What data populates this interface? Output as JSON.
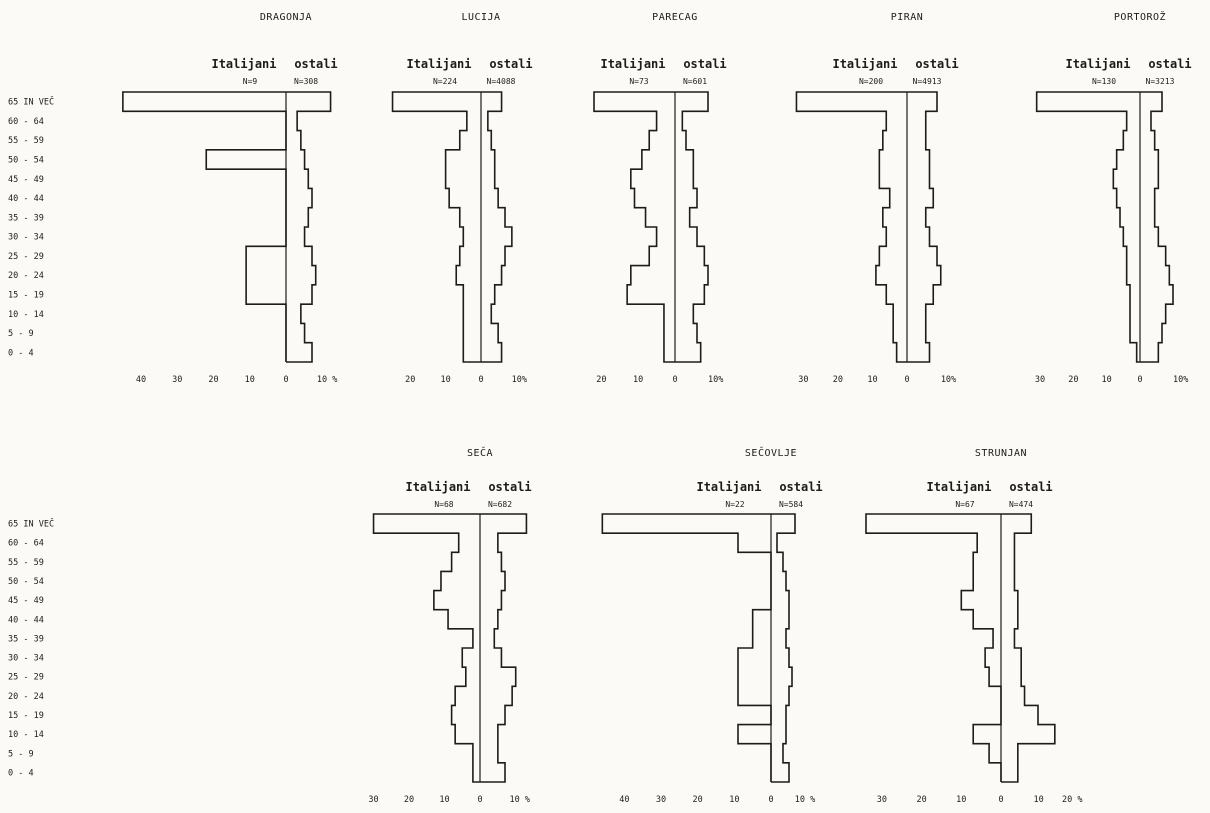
{
  "age_groups": [
    "65 IN VEČ",
    "60 - 64",
    "55 - 59",
    "50 - 54",
    "45 - 49",
    "40 - 44",
    "35 - 39",
    "30 - 34",
    "25 - 29",
    "20 - 24",
    "15 - 19",
    "10 - 14",
    "5 - 9",
    "0 - 4"
  ],
  "age_groups_row2": [
    "65 IN VEČ",
    "60 - 64",
    "55 - 59",
    "50 - 54",
    "45 - 49",
    "40 - 44",
    "35 - 39",
    "30 - 34",
    "25 - 29",
    "20 - 24",
    "15 - 19",
    "10 - 14",
    "5 - 9",
    "0 - 4"
  ],
  "chart_data": [
    {
      "type": "bar",
      "title": "DRAGONJA",
      "left_label": "Italijani",
      "right_label": "ostali",
      "left_n": "N=9",
      "right_n": "N=308",
      "left_ticks": [
        "40",
        "30",
        "20",
        "10"
      ],
      "right_ticks": [
        "10 %"
      ],
      "zero_label": "0",
      "xlim_left": 48,
      "xlim_right": 14,
      "categories": [
        "65 IN VEČ",
        "60 - 64",
        "55 - 59",
        "50 - 54",
        "45 - 49",
        "40 - 44",
        "35 - 39",
        "30 - 34",
        "25 - 29",
        "20 - 24",
        "15 - 19",
        "10 - 14",
        "5 - 9",
        "0 - 4"
      ],
      "series": [
        {
          "name": "Italijani",
          "values": [
            45,
            0,
            0,
            22,
            0,
            0,
            0,
            0,
            11,
            11,
            11,
            0,
            0,
            0
          ]
        },
        {
          "name": "ostali",
          "values": [
            12,
            3,
            4,
            5,
            6,
            7,
            6,
            5,
            7,
            8,
            7,
            4,
            5,
            7
          ]
        }
      ]
    },
    {
      "type": "bar",
      "title": "LUCIJA",
      "left_label": "Italijani",
      "right_label": "ostali",
      "left_n": "N=224",
      "right_n": "N=4088",
      "left_ticks": [
        "20",
        "10"
      ],
      "right_ticks": [
        "10%"
      ],
      "zero_label": "0",
      "xlim_left": 26,
      "xlim_right": 14,
      "categories": [
        "65 IN VEČ",
        "60 - 64",
        "55 - 59",
        "50 - 54",
        "45 - 49",
        "40 - 44",
        "35 - 39",
        "30 - 34",
        "25 - 29",
        "20 - 24",
        "15 - 19",
        "10 - 14",
        "5 - 9",
        "0 - 4"
      ],
      "series": [
        {
          "name": "Italijani",
          "values": [
            25,
            4,
            6,
            10,
            10,
            9,
            6,
            5,
            6,
            7,
            5,
            5,
            5,
            5
          ]
        },
        {
          "name": "ostali",
          "values": [
            6,
            2,
            3,
            4,
            4,
            5,
            7,
            9,
            7,
            6,
            4,
            3,
            5,
            6
          ]
        }
      ]
    },
    {
      "type": "bar",
      "title": "PARECAG",
      "left_label": "Italijani",
      "right_label": "ostali",
      "left_n": "N=73",
      "right_n": "N=601",
      "left_ticks": [
        "20",
        "10"
      ],
      "right_ticks": [
        "10%"
      ],
      "zero_label": "0",
      "xlim_left": 22,
      "xlim_right": 12,
      "categories": [
        "65 IN VEČ",
        "60 - 64",
        "55 - 59",
        "50 - 54",
        "45 - 49",
        "40 - 44",
        "35 - 39",
        "30 - 34",
        "25 - 29",
        "20 - 24",
        "15 - 19",
        "10 - 14",
        "5 - 9",
        "0 - 4"
      ],
      "series": [
        {
          "name": "Italijani",
          "values": [
            22,
            5,
            7,
            9,
            12,
            11,
            8,
            5,
            7,
            12,
            13,
            3,
            3,
            3
          ]
        },
        {
          "name": "ostali",
          "values": [
            9,
            2,
            3,
            5,
            5,
            6,
            4,
            6,
            8,
            9,
            8,
            5,
            6,
            7
          ]
        }
      ]
    },
    {
      "type": "bar",
      "title": "PIRAN",
      "left_label": "Italijani",
      "right_label": "ostali",
      "left_n": "N=200",
      "right_n": "N=4913",
      "left_ticks": [
        "30",
        "20",
        "10"
      ],
      "right_ticks": [
        "10%"
      ],
      "zero_label": "0",
      "xlim_left": 33,
      "xlim_right": 12,
      "categories": [
        "65 IN VEČ",
        "60 - 64",
        "55 - 59",
        "50 - 54",
        "45 - 49",
        "40 - 44",
        "35 - 39",
        "30 - 34",
        "25 - 29",
        "20 - 24",
        "15 - 19",
        "10 - 14",
        "5 - 9",
        "0 - 4"
      ],
      "series": [
        {
          "name": "Italijani",
          "values": [
            32,
            6,
            7,
            8,
            8,
            5,
            7,
            6,
            8,
            9,
            6,
            4,
            4,
            3
          ]
        },
        {
          "name": "ostali",
          "values": [
            8,
            5,
            5,
            6,
            6,
            7,
            5,
            6,
            8,
            9,
            7,
            5,
            5,
            6
          ]
        }
      ]
    },
    {
      "type": "bar",
      "title": "PORTOROŽ",
      "left_label": "Italijani",
      "right_label": "ostali",
      "left_n": "N=130",
      "right_n": "N=3213",
      "left_ticks": [
        "30",
        "20",
        "10"
      ],
      "right_ticks": [
        "10%"
      ],
      "zero_label": "0",
      "xlim_left": 33,
      "xlim_right": 12,
      "categories": [
        "65 IN VEČ",
        "60 - 64",
        "55 - 59",
        "50 - 54",
        "45 - 49",
        "40 - 44",
        "35 - 39",
        "30 - 34",
        "25 - 29",
        "20 - 24",
        "15 - 19",
        "10 - 14",
        "5 - 9",
        "0 - 4"
      ],
      "series": [
        {
          "name": "Italijani",
          "values": [
            31,
            4,
            5,
            7,
            8,
            7,
            6,
            5,
            4,
            4,
            3,
            3,
            3,
            1
          ]
        },
        {
          "name": "ostali",
          "values": [
            6,
            3,
            4,
            5,
            5,
            4,
            4,
            5,
            7,
            8,
            9,
            7,
            6,
            5
          ]
        }
      ]
    },
    {
      "type": "bar",
      "title": "SEČA",
      "left_label": "Italijani",
      "right_label": "ostali",
      "left_n": "N=68",
      "right_n": "N=682",
      "left_ticks": [
        "30",
        "20",
        "10"
      ],
      "right_ticks": [
        "10 %"
      ],
      "zero_label": "0",
      "xlim_left": 31,
      "xlim_right": 14,
      "categories": [
        "65 IN VEČ",
        "60 - 64",
        "55 - 59",
        "50 - 54",
        "45 - 49",
        "40 - 44",
        "35 - 39",
        "30 - 34",
        "25 - 29",
        "20 - 24",
        "15 - 19",
        "10 - 14",
        "5 - 9",
        "0 - 4"
      ],
      "series": [
        {
          "name": "Italijani",
          "values": [
            30,
            6,
            8,
            11,
            13,
            9,
            2,
            5,
            4,
            7,
            8,
            7,
            2,
            2
          ]
        },
        {
          "name": "ostali",
          "values": [
            13,
            5,
            6,
            7,
            6,
            5,
            4,
            6,
            10,
            9,
            7,
            5,
            5,
            7
          ]
        }
      ]
    },
    {
      "type": "bar",
      "title": "SEČOVLJE",
      "left_label": "Italijani",
      "right_label": "ostali",
      "left_n": "N=22",
      "right_n": "N=584",
      "left_ticks": [
        "40",
        "30",
        "20",
        "10"
      ],
      "right_ticks": [
        "10 %"
      ],
      "zero_label": "0",
      "xlim_left": 48,
      "xlim_right": 14,
      "categories": [
        "65 IN VEČ",
        "60 - 64",
        "55 - 59",
        "50 - 54",
        "45 - 49",
        "40 - 44",
        "35 - 39",
        "30 - 34",
        "25 - 29",
        "20 - 24",
        "15 - 19",
        "10 - 14",
        "5 - 9",
        "0 - 4"
      ],
      "series": [
        {
          "name": "Italijani",
          "values": [
            46,
            9,
            0,
            0,
            0,
            5,
            5,
            9,
            9,
            9,
            0,
            9,
            0,
            0
          ]
        },
        {
          "name": "ostali",
          "values": [
            8,
            2,
            4,
            5,
            6,
            6,
            5,
            6,
            7,
            6,
            5,
            5,
            4,
            6
          ]
        }
      ]
    },
    {
      "type": "bar",
      "title": "STRUNJAN",
      "left_label": "Italijani",
      "right_label": "ostali",
      "left_n": "N=67",
      "right_n": "N=474",
      "left_ticks": [
        "30",
        "20",
        "10"
      ],
      "right_ticks": [
        "10",
        "20 %"
      ],
      "zero_label": "0",
      "xlim_left": 34,
      "xlim_right": 22,
      "categories": [
        "65 IN VEČ",
        "60 - 64",
        "55 - 59",
        "50 - 54",
        "45 - 49",
        "40 - 44",
        "35 - 39",
        "30 - 34",
        "25 - 29",
        "20 - 24",
        "15 - 19",
        "10 - 14",
        "5 - 9",
        "0 - 4"
      ],
      "series": [
        {
          "name": "Italijani",
          "values": [
            34,
            6,
            7,
            7,
            10,
            7,
            2,
            4,
            3,
            0,
            0,
            7,
            3,
            0
          ]
        },
        {
          "name": "ostali",
          "values": [
            9,
            4,
            4,
            4,
            5,
            5,
            4,
            6,
            6,
            7,
            11,
            16,
            5,
            5
          ]
        }
      ]
    }
  ]
}
